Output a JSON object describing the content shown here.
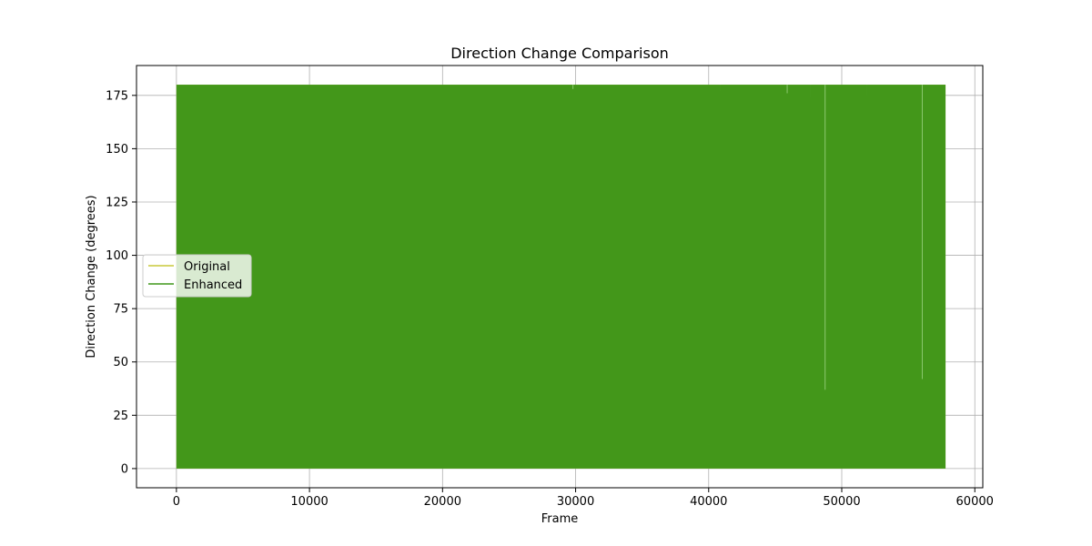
{
  "chart_data": {
    "type": "area",
    "title": "Direction Change Comparison",
    "xlabel": "Frame",
    "ylabel": "Direction Change (degrees)",
    "xlim": [
      -3000,
      60600
    ],
    "ylim": [
      -9,
      189
    ],
    "x_ticks": [
      0,
      10000,
      20000,
      30000,
      40000,
      50000,
      60000
    ],
    "y_ticks": [
      0,
      25,
      50,
      75,
      100,
      125,
      150,
      175
    ],
    "x_tick_labels": [
      "0",
      "10000",
      "20000",
      "30000",
      "40000",
      "50000",
      "60000"
    ],
    "y_tick_labels": [
      "0",
      "25",
      "50",
      "75",
      "100",
      "125",
      "150",
      "175"
    ],
    "grid": true,
    "legend_placement": "center-left",
    "frame_range": [
      0,
      57800
    ],
    "series": [
      {
        "name": "Original",
        "color": "#c8c83a",
        "band": [
          0,
          180
        ],
        "dips": [
          {
            "x": 48700,
            "y": 36
          },
          {
            "x": 47650,
            "y": 174
          },
          {
            "x": 51900,
            "y": 175
          },
          {
            "x": 40850,
            "y": 177
          }
        ]
      },
      {
        "name": "Enhanced",
        "color": "#3e9519",
        "band": [
          0,
          180
        ],
        "dips": [
          {
            "x": 48750,
            "y": 37
          },
          {
            "x": 56050,
            "y": 42
          },
          {
            "x": 45900,
            "y": 176
          },
          {
            "x": 29800,
            "y": 178
          }
        ]
      }
    ]
  }
}
